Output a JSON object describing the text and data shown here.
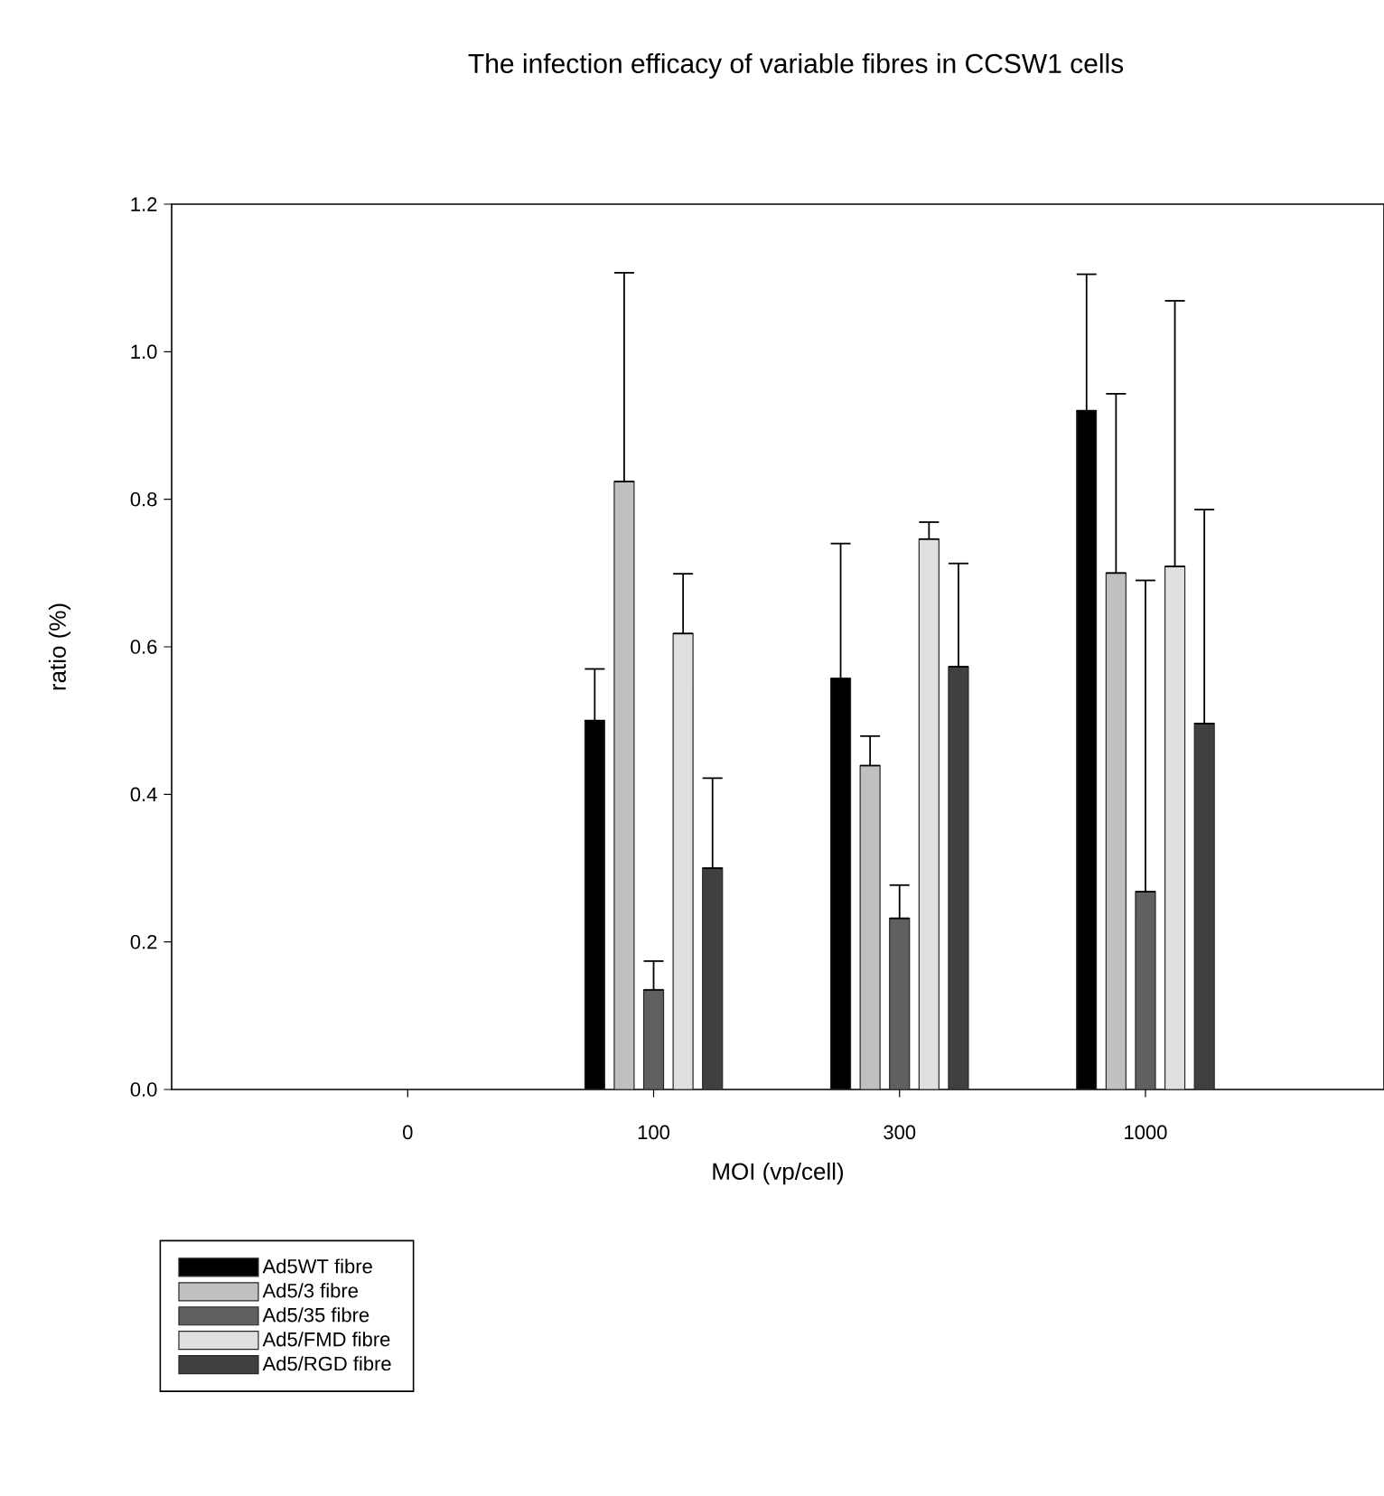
{
  "chart_data": {
    "type": "bar",
    "title": "The infection efficacy of variable fibres in CCSW1 cells",
    "xlabel": "MOI (vp/cell)",
    "ylabel": "ratio (%)",
    "categories": [
      "0",
      "100",
      "300",
      "1000"
    ],
    "series": [
      {
        "name": "Ad5WT fibre",
        "color": "#000000",
        "values": [
          null,
          0.5,
          0.557,
          0.92
        ],
        "errors": [
          null,
          [
            0.5,
            0.57
          ],
          [
            0.557,
            0.74
          ],
          [
            0.92,
            1.105
          ]
        ]
      },
      {
        "name": "Ad5/3 fibre",
        "color": "#c0c0c0",
        "values": [
          null,
          0.824,
          0.439,
          0.7
        ],
        "errors": [
          null,
          [
            0.824,
            1.107
          ],
          [
            0.439,
            0.479
          ],
          [
            0.7,
            0.943
          ]
        ]
      },
      {
        "name": "Ad5/35 fibre",
        "color": "#606060",
        "values": [
          null,
          0.135,
          0.232,
          0.268
        ],
        "errors": [
          null,
          [
            0.135,
            0.174
          ],
          [
            0.232,
            0.277
          ],
          [
            0.268,
            0.69
          ]
        ]
      },
      {
        "name": "Ad5/FMD fibre",
        "color": "#e0e0e0",
        "values": [
          null,
          0.618,
          0.746,
          0.709
        ],
        "errors": [
          null,
          [
            0.618,
            0.699
          ],
          [
            0.746,
            0.769
          ],
          [
            0.709,
            1.069
          ]
        ]
      },
      {
        "name": "Ad5/RGD fibre",
        "color": "#404040",
        "values": [
          null,
          0.3,
          0.573,
          0.496
        ],
        "errors": [
          null,
          [
            0.3,
            0.422
          ],
          [
            0.573,
            0.713
          ],
          [
            0.496,
            0.786
          ]
        ]
      }
    ],
    "ylim": [
      0,
      1.2
    ],
    "yticks": [
      {
        "value": 0,
        "label": "0.0"
      },
      {
        "value": 0.2,
        "label": "0.2"
      },
      {
        "value": 0.4,
        "label": "0.4"
      },
      {
        "value": 0.6,
        "label": "0.6"
      },
      {
        "value": 0.8,
        "label": "0.8"
      },
      {
        "value": 1.0,
        "label": "1.0"
      },
      {
        "value": 1.2,
        "label": "1.2"
      }
    ],
    "grid": false,
    "legend": "bottom left"
  }
}
